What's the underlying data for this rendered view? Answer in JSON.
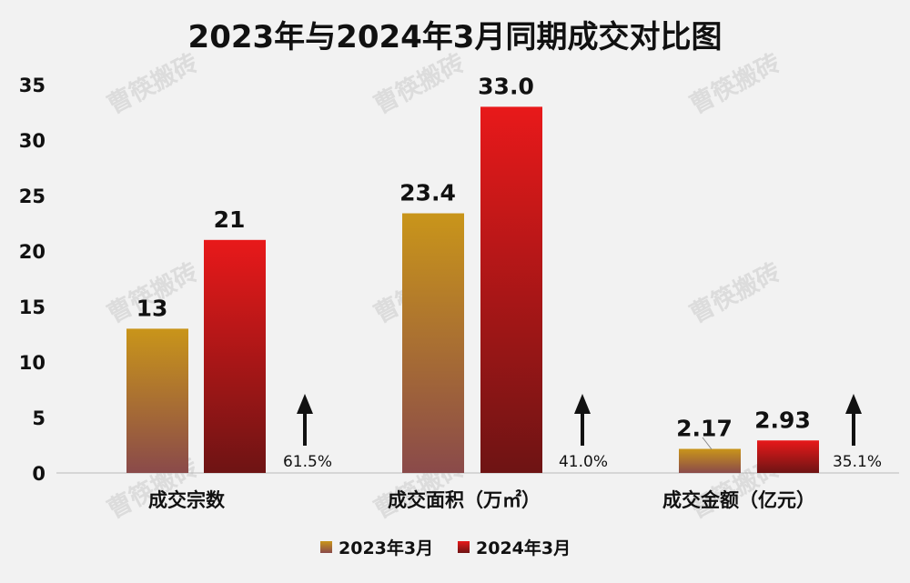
{
  "chart_data": {
    "type": "bar",
    "title": "2023年与2024年3月同期成交对比图",
    "categories": [
      "成交宗数",
      "成交面积（万㎡）",
      "成交金额（亿元）"
    ],
    "series": [
      {
        "name": "2023年3月",
        "values": [
          13,
          23.4,
          2.17
        ],
        "labels": [
          "13",
          "23.4",
          "2.17"
        ]
      },
      {
        "name": "2024年3月",
        "values": [
          21,
          33.0,
          2.93
        ],
        "labels": [
          "21",
          "33.0",
          "2.93"
        ]
      }
    ],
    "growth": [
      "61.5%",
      "41.0%",
      "35.1%"
    ],
    "ylim": [
      0,
      35
    ],
    "yticks": [
      0,
      5,
      10,
      15,
      20,
      25,
      30,
      35
    ],
    "ytick_labels": [
      "0",
      "5",
      "10",
      "15",
      "20",
      "25",
      "30",
      "35"
    ],
    "legend": "bottom",
    "grid": false,
    "colors": {
      "series_2023_top": "#c9951a",
      "series_2023_bottom": "#8a4a4a",
      "series_2024_top": "#e8191a",
      "series_2024_bottom": "#6e1414",
      "arrow": "#111111"
    },
    "watermark": "曹筷搬砖"
  }
}
